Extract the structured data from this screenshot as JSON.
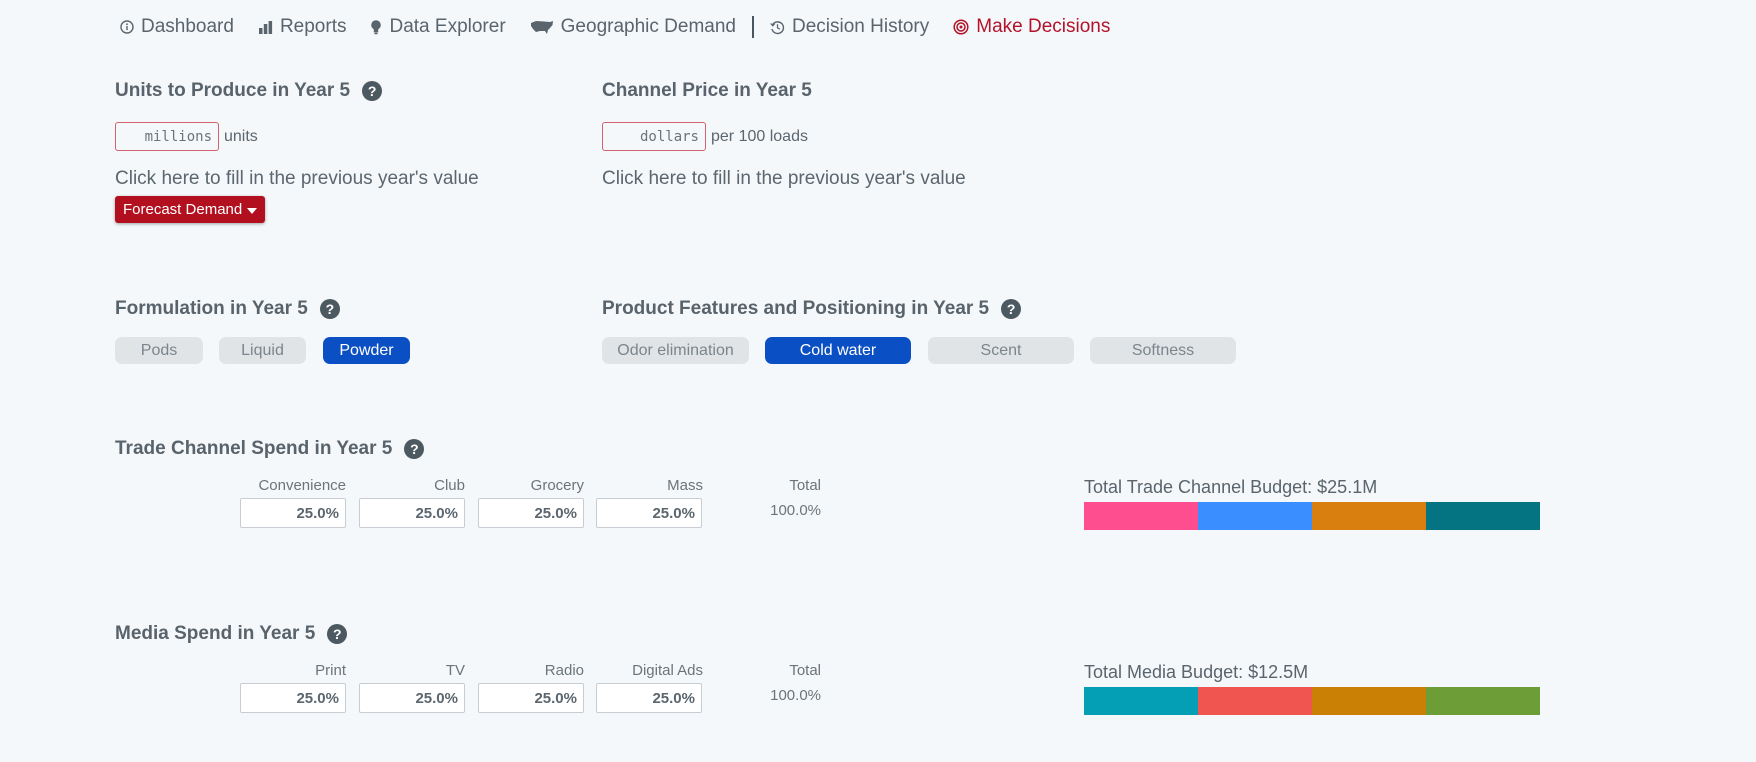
{
  "nav": {
    "items": [
      {
        "label": "Dashboard",
        "icon": "info-circle-icon"
      },
      {
        "label": "Reports",
        "icon": "bar-chart-icon"
      },
      {
        "label": "Data Explorer",
        "icon": "lightbulb-icon"
      },
      {
        "label": "Geographic Demand",
        "icon": "us-map-icon"
      },
      {
        "label": "Decision History",
        "icon": "history-icon"
      },
      {
        "label": "Make Decisions",
        "icon": "target-icon",
        "active": true
      }
    ]
  },
  "units": {
    "title": "Units to Produce in Year 5",
    "placeholder": "millions",
    "suffix": "units",
    "fill_link": "Click here to fill in the previous year's value",
    "forecast_button": "Forecast Demand"
  },
  "price": {
    "title": "Channel Price in Year 5",
    "placeholder": "dollars",
    "suffix": "per 100 loads",
    "fill_link": "Click here to fill in the previous year's value"
  },
  "formulation": {
    "title": "Formulation in Year 5",
    "options": [
      {
        "label": "Pods",
        "selected": false
      },
      {
        "label": "Liquid",
        "selected": false
      },
      {
        "label": "Powder",
        "selected": true
      }
    ]
  },
  "features": {
    "title": "Product Features and Positioning in Year 5",
    "options": [
      {
        "label": "Odor elimination",
        "selected": false
      },
      {
        "label": "Cold water",
        "selected": true
      },
      {
        "label": "Scent",
        "selected": false
      },
      {
        "label": "Softness",
        "selected": false
      }
    ]
  },
  "trade": {
    "title": "Trade Channel Spend in Year 5",
    "columns": [
      {
        "label": "Convenience",
        "value": "25.0%",
        "share": 25,
        "color": "#fe4e8f"
      },
      {
        "label": "Club",
        "value": "25.0%",
        "share": 25,
        "color": "#3b8eff"
      },
      {
        "label": "Grocery",
        "value": "25.0%",
        "share": 25,
        "color": "#d87f0f"
      },
      {
        "label": "Mass",
        "value": "25.0%",
        "share": 25,
        "color": "#047482"
      }
    ],
    "total_label": "Total",
    "total_value": "100.0%",
    "budget_label": "Total Trade Channel Budget: $25.1M"
  },
  "media": {
    "title": "Media Spend in Year 5",
    "columns": [
      {
        "label": "Print",
        "value": "25.0%",
        "share": 25,
        "color": "#049fb4"
      },
      {
        "label": "TV",
        "value": "25.0%",
        "share": 25,
        "color": "#f0564f"
      },
      {
        "label": "Radio",
        "value": "25.0%",
        "share": 25,
        "color": "#c98004"
      },
      {
        "label": "Digital Ads",
        "value": "25.0%",
        "share": 25,
        "color": "#6c9d37"
      }
    ],
    "total_label": "Total",
    "total_value": "100.0%",
    "budget_label": "Total Media Budget: $12.5M"
  }
}
